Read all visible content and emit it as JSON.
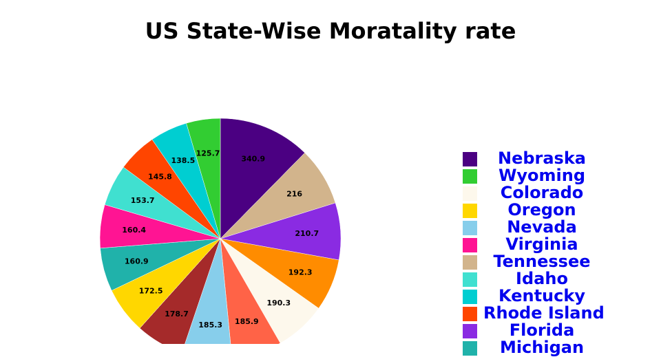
{
  "chart_data": {
    "type": "pie",
    "title": "US State-Wise Moratality rate",
    "legend_position": "right",
    "slices": [
      {
        "label": "Nebraska",
        "value": 340.9,
        "color": "#4b0082"
      },
      {
        "label": "Tennessee",
        "value": 216,
        "color": "#d2b48c"
      },
      {
        "label": "Florida",
        "value": 210.7,
        "color": "#8a2be2"
      },
      {
        "label": "",
        "value": 192.3,
        "color": "#ff8c00"
      },
      {
        "label": "Colorado",
        "value": 190.3,
        "color": "#fdf8ec"
      },
      {
        "label": "",
        "value": 185.9,
        "color": "#ff6347"
      },
      {
        "label": "Nevada",
        "value": 185.3,
        "color": "#87ceeb"
      },
      {
        "label": "",
        "value": 178.7,
        "color": "#a52a2a"
      },
      {
        "label": "Oregon",
        "value": 172.5,
        "color": "#ffd700"
      },
      {
        "label": "",
        "value": 160.9,
        "color": "#20b2aa"
      },
      {
        "label": "Virginia",
        "value": 160.4,
        "color": "#ff1493"
      },
      {
        "label": "Idaho",
        "value": 153.7,
        "color": "#40e0d0"
      },
      {
        "label": "Rhode Island",
        "value": 145.8,
        "color": "#ff4500"
      },
      {
        "label": "Kentucky",
        "value": 138.5,
        "color": "#00ced1"
      },
      {
        "label": "Wyoming",
        "value": 125.7,
        "color": "#32cd32"
      }
    ]
  },
  "legend": [
    {
      "label": "Nebraska",
      "color": "#4b0082"
    },
    {
      "label": "Wyoming",
      "color": "#32cd32"
    },
    {
      "label": "Colorado",
      "color": "#fdf8ec"
    },
    {
      "label": "Oregon",
      "color": "#ffd700"
    },
    {
      "label": "Nevada",
      "color": "#87ceeb"
    },
    {
      "label": "Virginia",
      "color": "#ff1493"
    },
    {
      "label": "Tennessee",
      "color": "#d2b48c"
    },
    {
      "label": "Idaho",
      "color": "#40e0d0"
    },
    {
      "label": "Kentucky",
      "color": "#00ced1"
    },
    {
      "label": "Rhode Island",
      "color": "#ff4500"
    },
    {
      "label": "Florida",
      "color": "#8a2be2"
    },
    {
      "label": "Michigan",
      "color": "#20b2aa"
    }
  ]
}
